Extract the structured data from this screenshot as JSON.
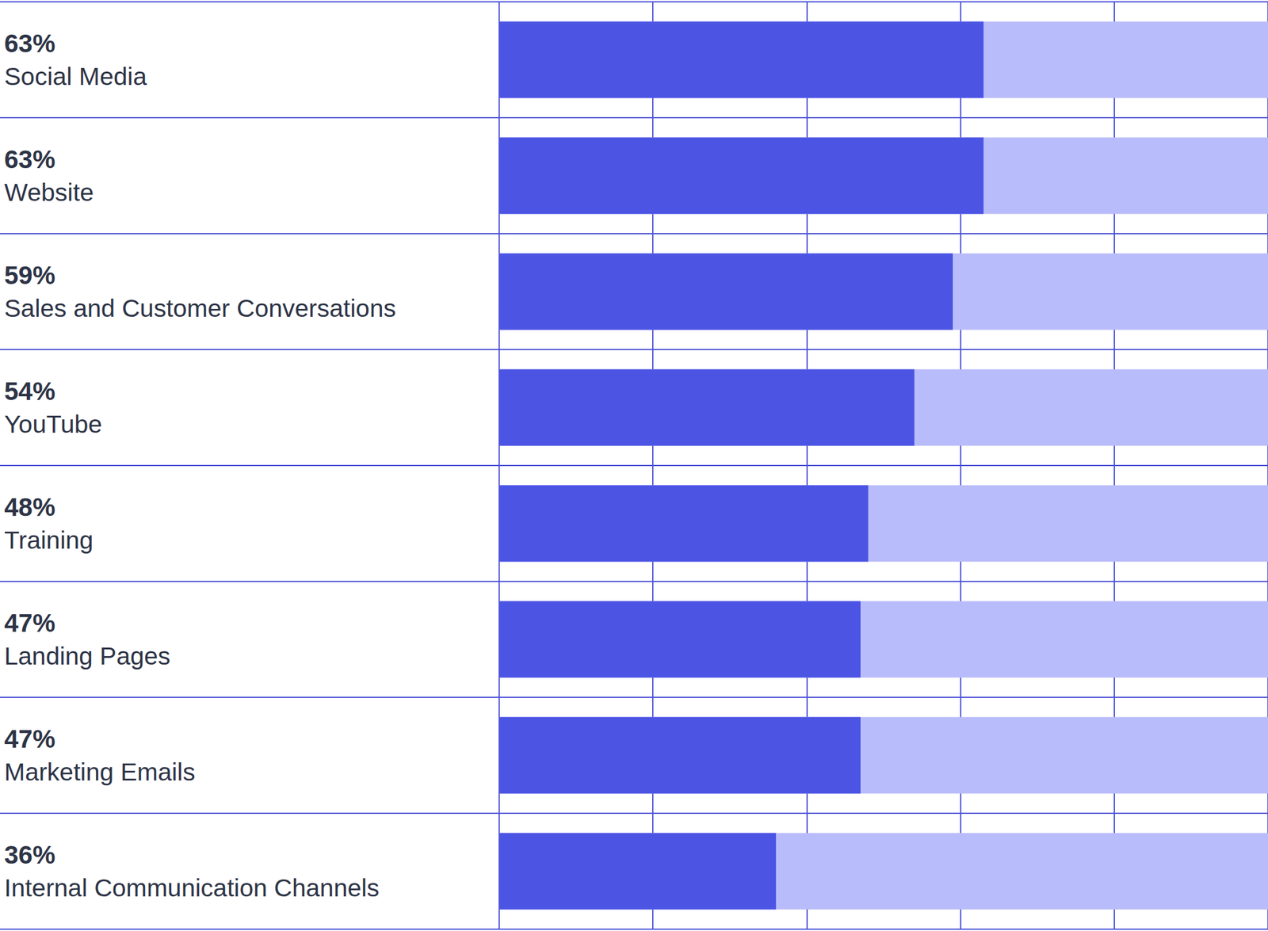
{
  "chart_data": {
    "type": "bar",
    "orientation": "horizontal",
    "categories": [
      "Social Media",
      "Website",
      "Sales and Customer Conversations",
      "YouTube",
      "Training",
      "Landing Pages",
      "Marketing Emails",
      "Internal Communication Channels"
    ],
    "values": [
      63,
      63,
      59,
      54,
      48,
      47,
      47,
      36
    ],
    "value_labels": [
      "63%",
      "63%",
      "59%",
      "54%",
      "48%",
      "47%",
      "47%",
      "36%"
    ],
    "data_labels": true,
    "color": "#4c54e4",
    "xlim": [
      0,
      100
    ],
    "xticks": [
      0,
      20,
      40,
      60,
      80,
      100
    ],
    "grid": true,
    "tick_labels": "y"
  }
}
